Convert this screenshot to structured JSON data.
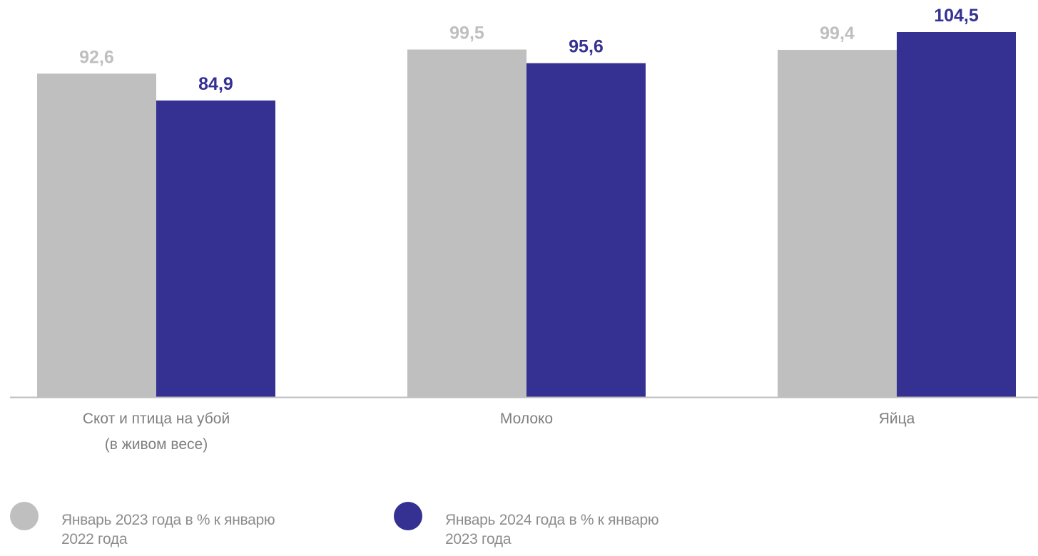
{
  "chart_data": {
    "type": "bar",
    "categories": [
      [
        "Скот и птица на убой",
        "(в живом весе)"
      ],
      [
        "Молоко"
      ],
      [
        "Яйца"
      ]
    ],
    "series": [
      {
        "name": "Январь 2023 года в % к январю 2022 года",
        "values": [
          92.6,
          99.5,
          99.4
        ],
        "labels": [
          "92,6",
          "99,5",
          "99,4"
        ],
        "color": "#bfbfbf",
        "label_color": "#bfbfbf"
      },
      {
        "name": "Январь 2024 года в % к январю 2023 года",
        "values": [
          84.9,
          95.6,
          104.5
        ],
        "labels": [
          "84,9",
          "95,6",
          "104,5"
        ],
        "color": "#353192",
        "label_color": "#353192"
      }
    ],
    "ylim": [
      0,
      106
    ],
    "grid": false,
    "legend_position": "bottom",
    "axis_color": "#bfbfbf",
    "category_label_color": "#7f7f7f"
  },
  "legend": {
    "items": [
      {
        "label": "Январь 2023 года в % к январю 2022 года",
        "color": "#bfbfbf"
      },
      {
        "label": "Январь 2024 года в % к январю 2023 года",
        "color": "#353192"
      }
    ]
  }
}
